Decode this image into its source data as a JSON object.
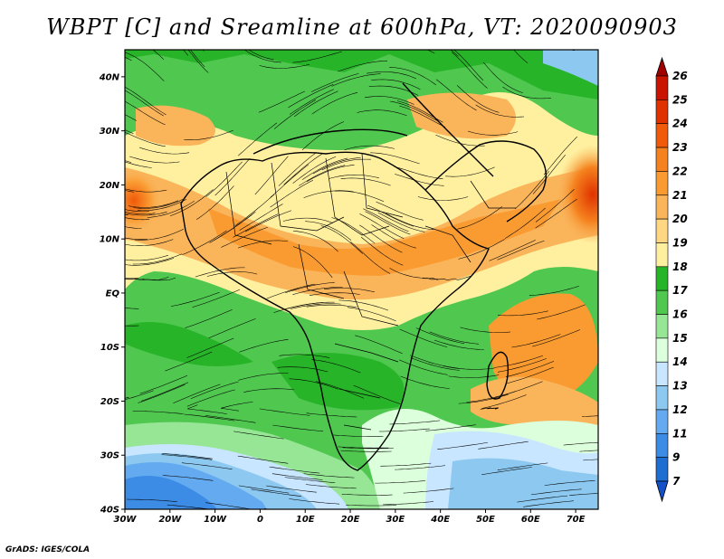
{
  "title": "WBPT [C] and Sreamline at 600hPa, VT: 2020090903",
  "credit": "GrADS: IGES/COLA",
  "map": {
    "lon_range": [
      -30,
      75
    ],
    "lat_range": [
      -40,
      45
    ],
    "lon_ticks": [
      {
        "value": -30,
        "label": "30W"
      },
      {
        "value": -20,
        "label": "20W"
      },
      {
        "value": -10,
        "label": "10W"
      },
      {
        "value": 0,
        "label": "0"
      },
      {
        "value": 10,
        "label": "10E"
      },
      {
        "value": 20,
        "label": "20E"
      },
      {
        "value": 30,
        "label": "30E"
      },
      {
        "value": 40,
        "label": "40E"
      },
      {
        "value": 50,
        "label": "50E"
      },
      {
        "value": 60,
        "label": "60E"
      },
      {
        "value": 70,
        "label": "70E"
      }
    ],
    "lat_ticks": [
      {
        "value": 40,
        "label": "40N"
      },
      {
        "value": 30,
        "label": "30N"
      },
      {
        "value": 20,
        "label": "20N"
      },
      {
        "value": 10,
        "label": "10N"
      },
      {
        "value": 0,
        "label": "EQ"
      },
      {
        "value": -10,
        "label": "10S"
      },
      {
        "value": -20,
        "label": "20S"
      },
      {
        "value": -30,
        "label": "30S"
      },
      {
        "value": -40,
        "label": "40S"
      }
    ]
  },
  "colorbar": {
    "labels": [
      "26",
      "25",
      "24",
      "23",
      "22",
      "21",
      "20",
      "19",
      "18",
      "17",
      "16",
      "15",
      "14",
      "13",
      "12",
      "11",
      "9",
      "7"
    ],
    "colors": [
      "#a00000",
      "#c81400",
      "#e03200",
      "#f05a0a",
      "#f5821e",
      "#fa9b32",
      "#fab45a",
      "#ffd682",
      "#fff0a0",
      "#28b428",
      "#50c850",
      "#96e696",
      "#dcffdc",
      "#c8e6ff",
      "#8cc8f0",
      "#64aaf0",
      "#3c8ce6",
      "#1e6ed2",
      "#1450c8"
    ]
  }
}
